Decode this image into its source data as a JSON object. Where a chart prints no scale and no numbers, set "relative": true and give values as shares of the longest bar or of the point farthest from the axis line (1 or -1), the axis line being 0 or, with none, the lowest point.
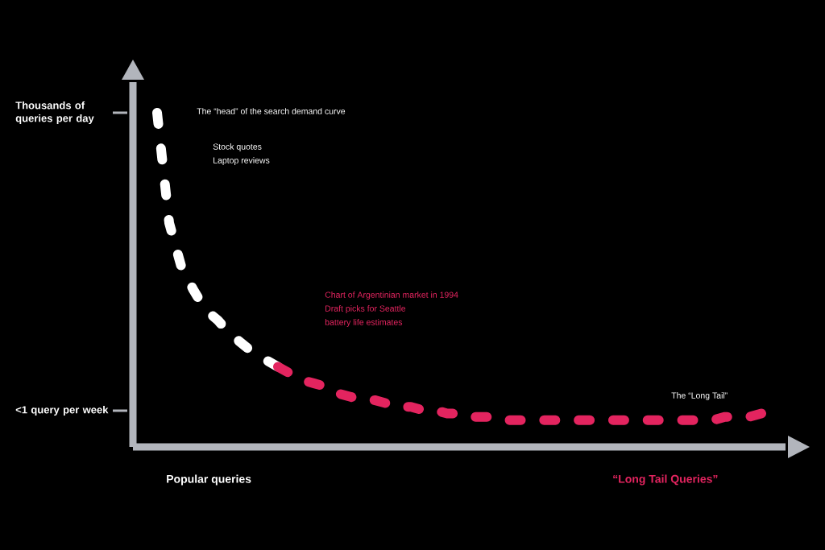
{
  "chart_data": {
    "type": "line",
    "relative": true,
    "line_style": "dashed",
    "categories": [
      null,
      null,
      null,
      null,
      null,
      null,
      null,
      null,
      null,
      null,
      null,
      null,
      null,
      null,
      null,
      null,
      null,
      null,
      null,
      null,
      null,
      null,
      null,
      null,
      null,
      null,
      null,
      null,
      null,
      null,
      null,
      null,
      null,
      null,
      null,
      null,
      null,
      null,
      null,
      null,
      null,
      null,
      null,
      null,
      null,
      null,
      null,
      null,
      null,
      null,
      null
    ],
    "series": [
      {
        "color": "#ffffff",
        "values": [
          1.0,
          0.67,
          0.54,
          0.47,
          0.41,
          0.38,
          0.34,
          0.31,
          0.28,
          0.26,
          0.24,
          null,
          null,
          null,
          null,
          null,
          null,
          null,
          null,
          null,
          null,
          null,
          null,
          null,
          null,
          null,
          null,
          null,
          null,
          null,
          null,
          null,
          null,
          null,
          null,
          null,
          null,
          null,
          null,
          null,
          null,
          null,
          null,
          null,
          null,
          null,
          null,
          null,
          null,
          null,
          null
        ]
      },
      {
        "color": "#e3245f",
        "values": [
          null,
          null,
          null,
          null,
          null,
          null,
          null,
          null,
          null,
          null,
          0.24,
          0.22,
          0.2,
          0.19,
          0.18,
          0.16,
          0.15,
          0.14,
          0.14,
          0.13,
          0.12,
          0.12,
          0.11,
          0.11,
          0.1,
          0.1,
          0.09,
          0.09,
          0.09,
          0.08,
          0.08,
          0.08,
          0.08,
          0.08,
          0.08,
          0.08,
          0.08,
          0.08,
          0.08,
          0.08,
          0.08,
          0.08,
          0.08,
          0.08,
          0.08,
          0.08,
          0.08,
          0.09,
          0.09,
          0.09,
          0.1
        ]
      }
    ],
    "annotations": [
      "Thousands of queries per day",
      "<1 query per week",
      "The “head” of the search demand curve",
      "Stock quotes",
      "Laptop reviews",
      "Chart of Argentinian market in 1994",
      "Draft picks for Seattle",
      "battery life estimates",
      "The “Long Tail”",
      "Popular queries",
      "“Long Tail Queries”"
    ]
  }
}
